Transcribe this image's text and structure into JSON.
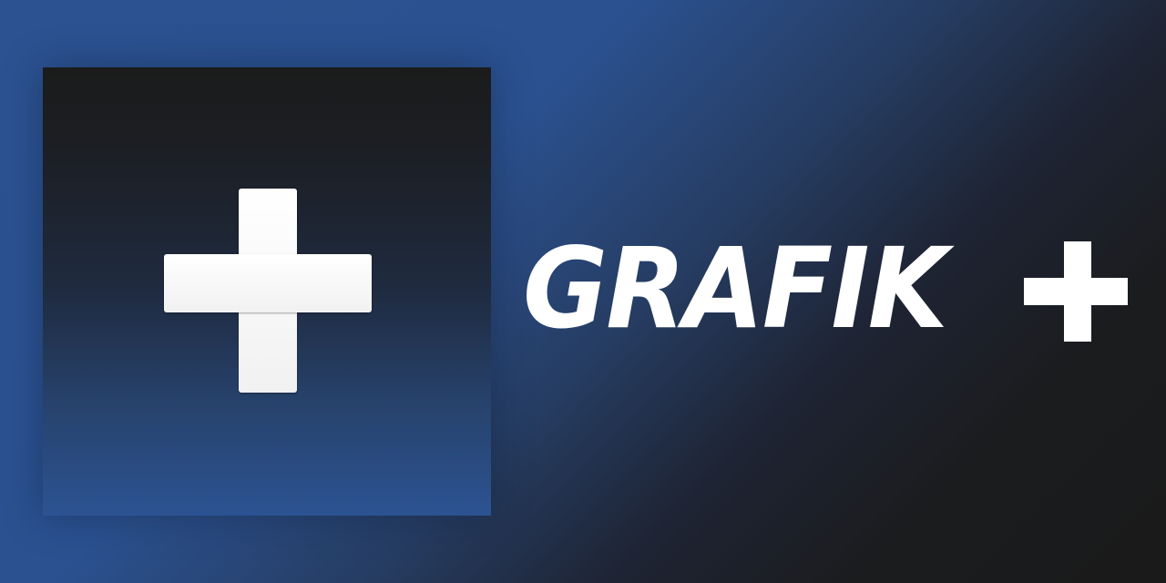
{
  "banner": {
    "colors": {
      "blue": "#2c5291",
      "dark": "#1a1a1a",
      "white": "#ffffff"
    }
  },
  "app_icon": {
    "icon": "plus-icon"
  },
  "wordmark": {
    "text": "GRAFIK",
    "plus_icon": "plus-icon"
  }
}
